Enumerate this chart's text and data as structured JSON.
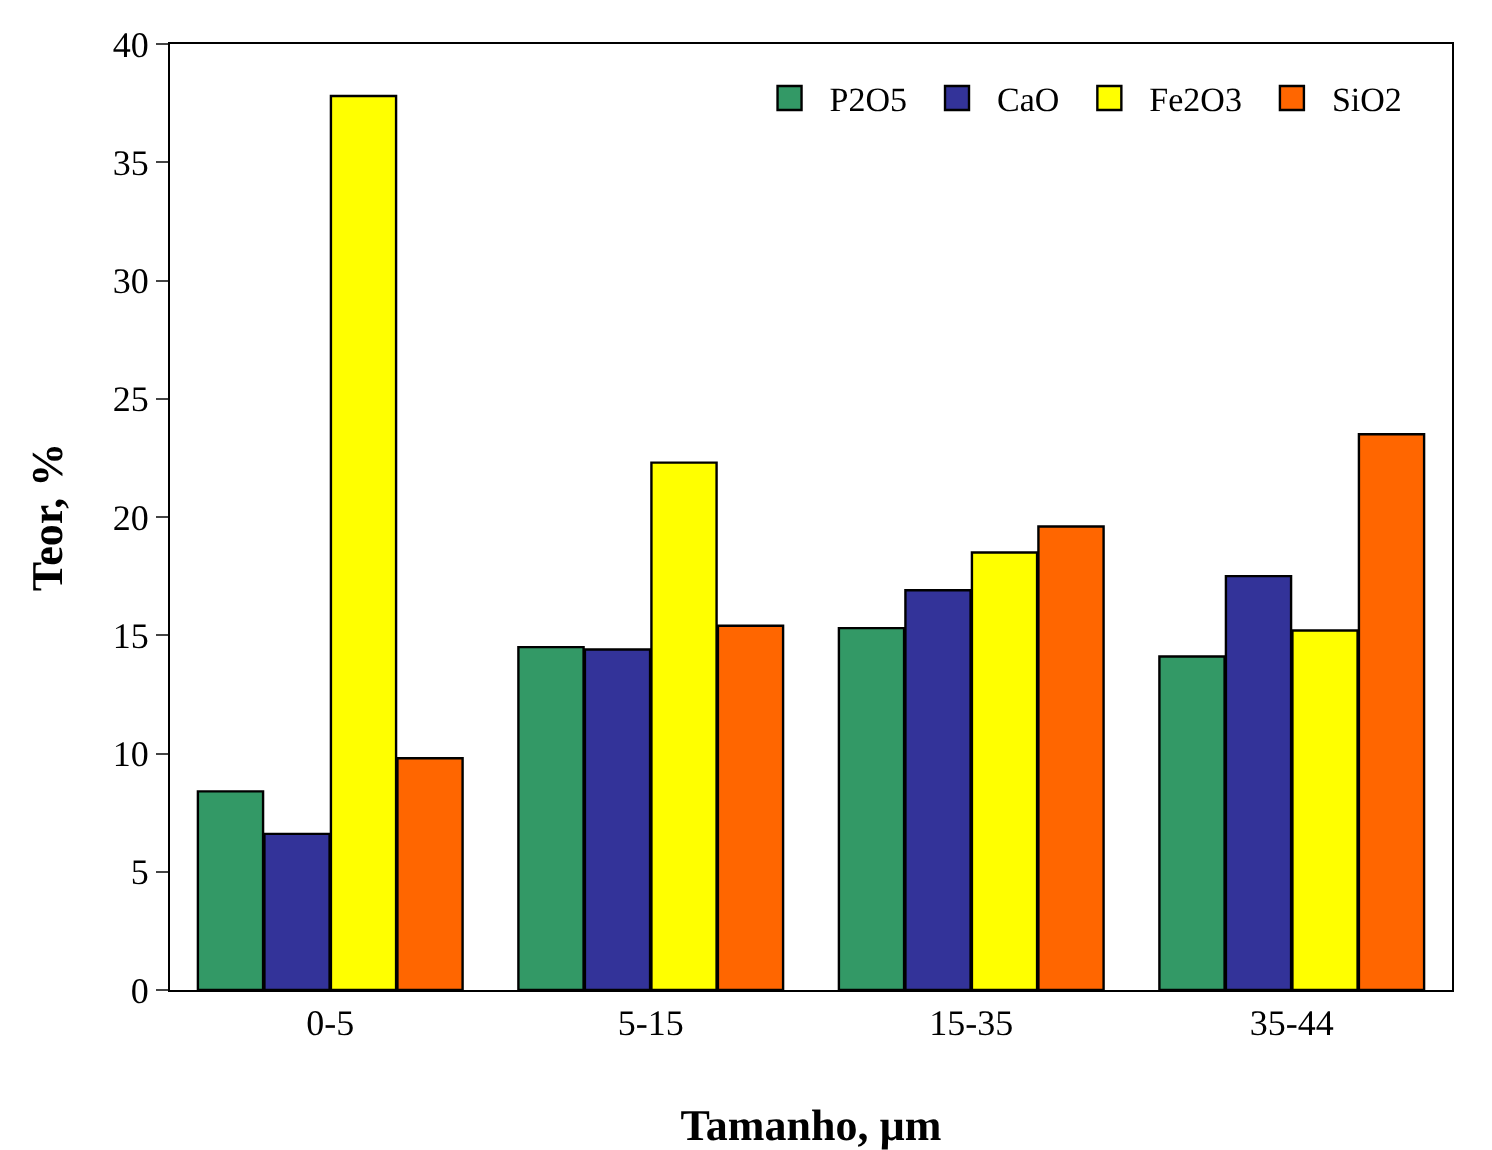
{
  "chart_data": {
    "type": "bar",
    "xlabel": "Tamanho, µm",
    "ylabel": "Teor, %",
    "categories": [
      "0-5",
      "5-15",
      "15-35",
      "35-44"
    ],
    "series": [
      {
        "name": "P2O5",
        "color": "#339966",
        "values": [
          8.4,
          14.5,
          15.3,
          14.1
        ]
      },
      {
        "name": "CaO",
        "color": "#333399",
        "values": [
          6.6,
          14.4,
          16.9,
          17.5
        ]
      },
      {
        "name": "Fe2O3",
        "color": "#ffff00",
        "values": [
          37.8,
          22.3,
          18.5,
          15.2
        ]
      },
      {
        "name": "SiO2",
        "color": "#ff6600",
        "values": [
          9.8,
          15.4,
          19.6,
          23.5
        ]
      }
    ],
    "ylim": [
      0,
      40
    ],
    "yticks": [
      0,
      5,
      10,
      15,
      20,
      25,
      30,
      35,
      40
    ],
    "grid": false,
    "legend": "top right"
  }
}
